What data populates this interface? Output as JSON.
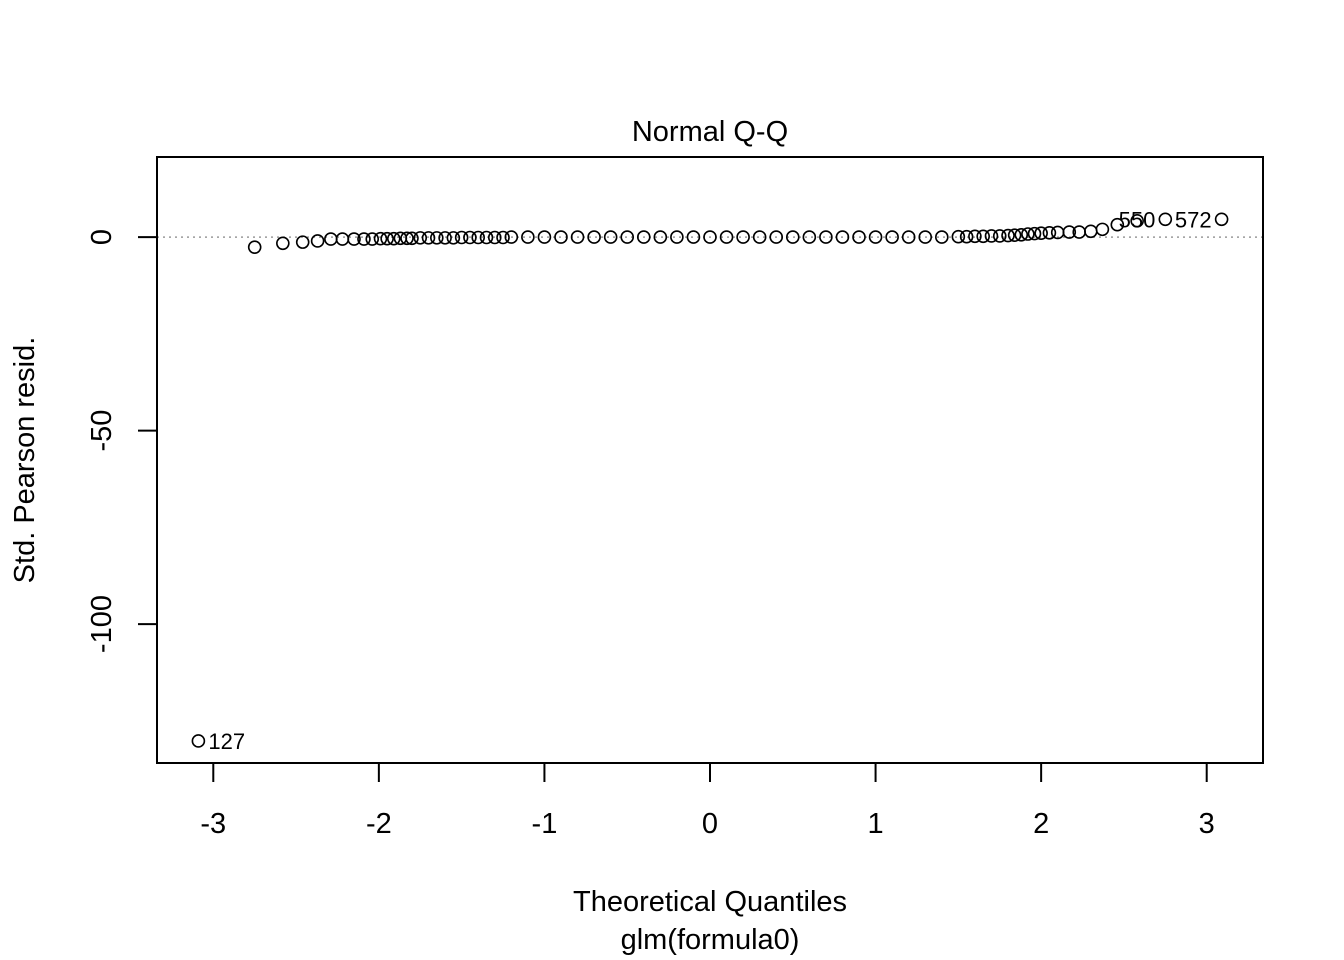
{
  "chart_data": {
    "type": "scatter",
    "title": "Normal Q-Q",
    "xlabel": "Theoretical Quantiles",
    "ylabel": "Std. Pearson resid.",
    "subtitle": "glm(formula0)",
    "xlim": [
      -3.34,
      3.34
    ],
    "ylim": [
      -135.9,
      20.7
    ],
    "xticks": [
      -3,
      -2,
      -1,
      0,
      1,
      2,
      3
    ],
    "yticks": [
      0,
      -50,
      -100
    ],
    "grid": false,
    "reference_line": {
      "y": 0,
      "style": "dotted",
      "color": "#999999"
    },
    "point_color": "#000000",
    "labeled_points": [
      {
        "label": "127",
        "x": -3.09,
        "y": -130.2
      },
      {
        "label": "550",
        "x": 2.75,
        "y": 4.6
      },
      {
        "label": "572",
        "x": 3.09,
        "y": 4.6
      }
    ],
    "points": [
      [
        -3.09,
        -130.2
      ],
      [
        -2.75,
        -2.6
      ],
      [
        -2.58,
        -1.6
      ],
      [
        -2.46,
        -1.3
      ],
      [
        -2.37,
        -1.0
      ],
      [
        -2.29,
        -0.5
      ],
      [
        -2.22,
        -0.5
      ],
      [
        -2.15,
        -0.5
      ],
      [
        -2.09,
        -0.5
      ],
      [
        -2.04,
        -0.5
      ],
      [
        -1.99,
        -0.4
      ],
      [
        -1.95,
        -0.4
      ],
      [
        -1.91,
        -0.4
      ],
      [
        -1.87,
        -0.3
      ],
      [
        -1.83,
        -0.3
      ],
      [
        -1.8,
        -0.3
      ],
      [
        -1.75,
        -0.2
      ],
      [
        -1.7,
        -0.2
      ],
      [
        -1.65,
        -0.2
      ],
      [
        -1.6,
        -0.2
      ],
      [
        -1.55,
        -0.2
      ],
      [
        -1.5,
        -0.1
      ],
      [
        -1.45,
        -0.1
      ],
      [
        -1.4,
        -0.1
      ],
      [
        -1.35,
        -0.1
      ],
      [
        -1.3,
        -0.1
      ],
      [
        -1.25,
        -0.1
      ],
      [
        -1.2,
        0
      ],
      [
        -1.1,
        0
      ],
      [
        -1.0,
        0
      ],
      [
        -0.9,
        0
      ],
      [
        -0.8,
        0
      ],
      [
        -0.7,
        0
      ],
      [
        -0.6,
        0
      ],
      [
        -0.5,
        0
      ],
      [
        -0.4,
        0
      ],
      [
        -0.3,
        0
      ],
      [
        -0.2,
        0
      ],
      [
        -0.1,
        0
      ],
      [
        0,
        0
      ],
      [
        0.1,
        0
      ],
      [
        0.2,
        0
      ],
      [
        0.3,
        0
      ],
      [
        0.4,
        0
      ],
      [
        0.5,
        0
      ],
      [
        0.6,
        0
      ],
      [
        0.7,
        0
      ],
      [
        0.8,
        0
      ],
      [
        0.9,
        0
      ],
      [
        1.0,
        0
      ],
      [
        1.1,
        0
      ],
      [
        1.2,
        0
      ],
      [
        1.3,
        0
      ],
      [
        1.4,
        0
      ],
      [
        1.5,
        0.1
      ],
      [
        1.55,
        0.1
      ],
      [
        1.6,
        0.2
      ],
      [
        1.65,
        0.2
      ],
      [
        1.7,
        0.3
      ],
      [
        1.75,
        0.3
      ],
      [
        1.8,
        0.4
      ],
      [
        1.84,
        0.5
      ],
      [
        1.88,
        0.6
      ],
      [
        1.92,
        0.8
      ],
      [
        1.96,
        0.9
      ],
      [
        2.0,
        1.0
      ],
      [
        2.05,
        1.1
      ],
      [
        2.1,
        1.2
      ],
      [
        2.17,
        1.3
      ],
      [
        2.23,
        1.3
      ],
      [
        2.3,
        1.5
      ],
      [
        2.37,
        2.0
      ],
      [
        2.46,
        3.2
      ],
      [
        2.58,
        4.2
      ],
      [
        2.75,
        4.6
      ],
      [
        3.09,
        4.6
      ]
    ]
  }
}
